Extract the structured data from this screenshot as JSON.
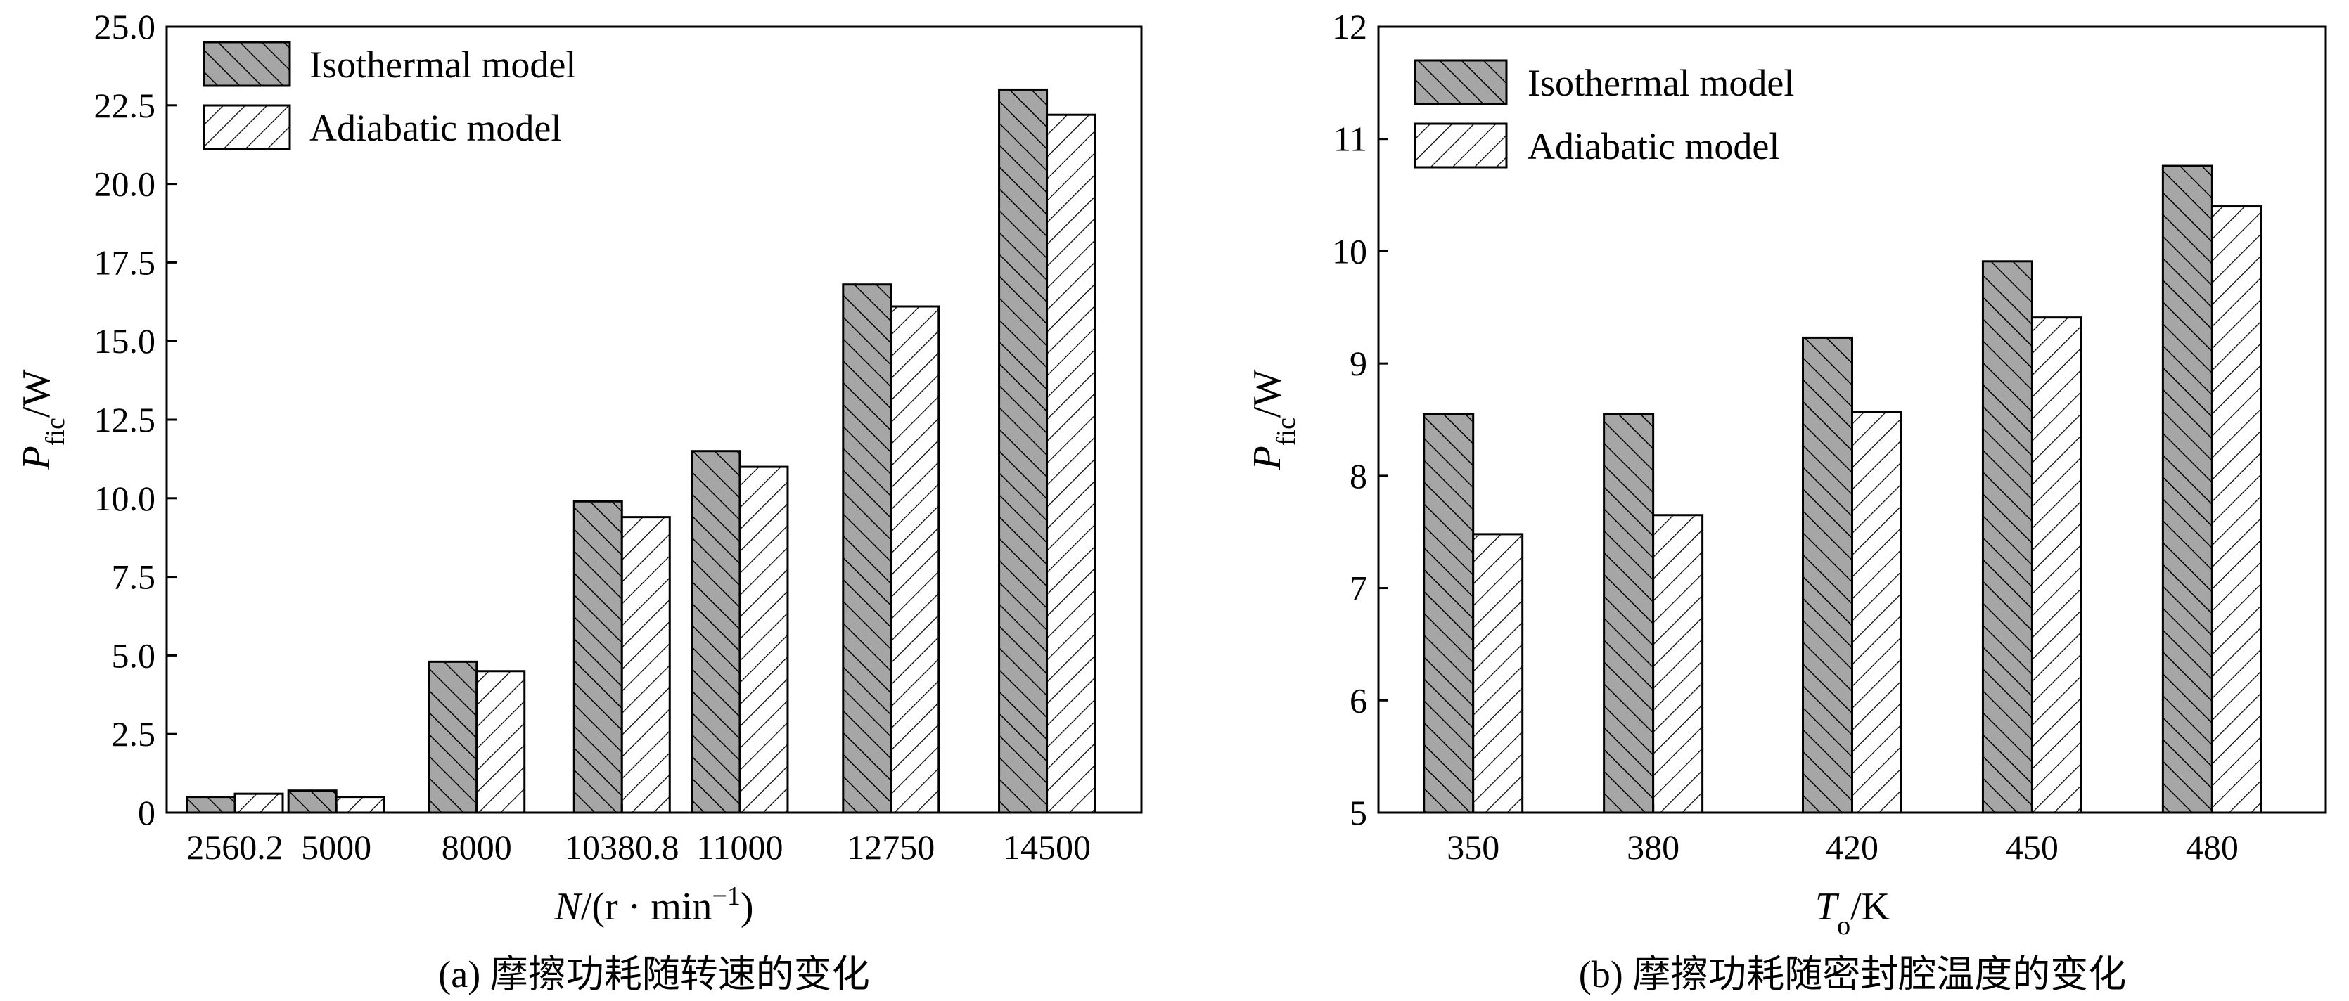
{
  "chart_data": [
    {
      "type": "bar",
      "caption": "(a) 摩擦功耗随转速的变化",
      "categories": [
        "2560.2",
        "5000",
        "8000",
        "10380.8",
        "11000",
        "12750",
        "14500"
      ],
      "series": [
        {
          "name": "Isothermal model",
          "values": [
            0.5,
            0.7,
            4.8,
            9.9,
            11.5,
            16.8,
            23.0
          ]
        },
        {
          "name": "Adiabatic model",
          "values": [
            0.6,
            0.5,
            4.5,
            9.4,
            11.0,
            16.1,
            22.2
          ]
        }
      ],
      "xlabel": {
        "main": "N",
        "rest": "/(r · min",
        "sup": "−1",
        "close": ")"
      },
      "ylabel": {
        "main": "P",
        "sub": "fic",
        "rest": "/W"
      },
      "ylim": [
        0,
        25
      ],
      "yticks": [
        "0",
        "2.5",
        "5.0",
        "7.5",
        "10.0",
        "12.5",
        "15.0",
        "17.5",
        "20.0",
        "22.5",
        "25.0"
      ],
      "legend_position": "top-left",
      "grid": false
    },
    {
      "type": "bar",
      "caption": "(b) 摩擦功耗随密封腔温度的变化",
      "categories": [
        "350",
        "380",
        "420",
        "450",
        "480"
      ],
      "series": [
        {
          "name": "Isothermal model",
          "values": [
            8.55,
            8.55,
            9.23,
            9.91,
            10.76
          ]
        },
        {
          "name": "Adiabatic model",
          "values": [
            7.48,
            7.65,
            8.57,
            9.41,
            10.4
          ]
        }
      ],
      "xlabel": {
        "main": "T",
        "sub": "o",
        "rest": "/K"
      },
      "ylabel": {
        "main": "P",
        "sub": "fic",
        "rest": "/W"
      },
      "ylim": [
        5,
        12
      ],
      "yticks": [
        "5",
        "6",
        "7",
        "8",
        "9",
        "10",
        "11",
        "12"
      ],
      "legend_position": "top-left",
      "grid": false
    }
  ],
  "colors": {
    "isothermal_fill": "#a6a6a6",
    "adiabatic_fill": "#ffffff",
    "stroke": "#000000"
  }
}
